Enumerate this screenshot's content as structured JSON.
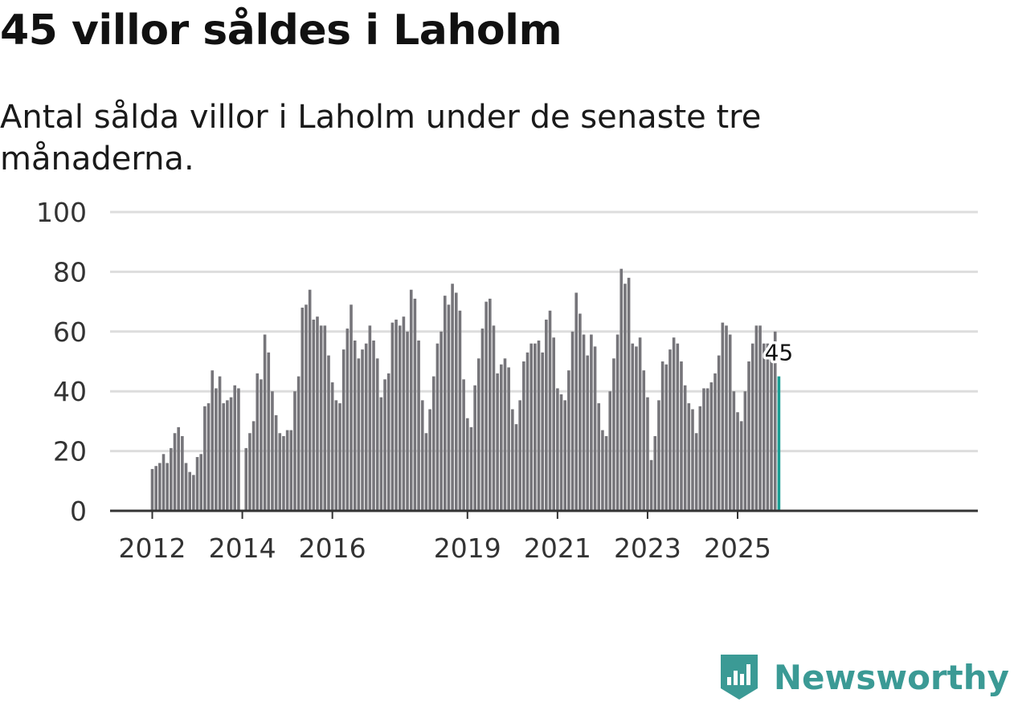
{
  "title": "45 villor såldes i Laholm",
  "subtitle": "Antal sålda villor i Laholm under de senaste tre månaderna.",
  "brand": {
    "name": "Newsworthy",
    "color": "#3b9a95",
    "icon": "newsworthy-logo-icon"
  },
  "colors": {
    "bar": "#76757a",
    "highlight": "#1a9e94",
    "grid": "#dddddd",
    "axis": "#333333"
  },
  "chart_data": {
    "type": "bar",
    "title": "45 villor såldes i Laholm",
    "xlabel": "",
    "ylabel": "",
    "ylim": [
      0,
      100
    ],
    "yticks": [
      0,
      20,
      40,
      60,
      80,
      100
    ],
    "x_start": {
      "year": 2012,
      "month": 1
    },
    "xticks": [
      "2012",
      "2014",
      "2016",
      "2019",
      "2021",
      "2023",
      "2025"
    ],
    "grid": true,
    "highlight_label": "45",
    "values": [
      14,
      15,
      16,
      19,
      16,
      21,
      26,
      28,
      25,
      16,
      13,
      12,
      18,
      19,
      35,
      36,
      47,
      41,
      45,
      36,
      37,
      38,
      42,
      41,
      0,
      21,
      26,
      30,
      46,
      44,
      59,
      53,
      40,
      32,
      26,
      25,
      27,
      27,
      40,
      45,
      68,
      69,
      74,
      64,
      65,
      62,
      62,
      52,
      43,
      37,
      36,
      54,
      61,
      69,
      57,
      51,
      54,
      56,
      62,
      57,
      51,
      38,
      44,
      46,
      63,
      64,
      62,
      65,
      60,
      74,
      71,
      57,
      37,
      26,
      34,
      45,
      56,
      60,
      72,
      69,
      76,
      73,
      67,
      44,
      31,
      28,
      42,
      51,
      61,
      70,
      71,
      62,
      46,
      49,
      51,
      48,
      34,
      29,
      37,
      50,
      53,
      56,
      56,
      57,
      53,
      64,
      67,
      58,
      41,
      39,
      37,
      47,
      60,
      73,
      66,
      59,
      52,
      59,
      55,
      36,
      27,
      25,
      40,
      51,
      59,
      81,
      76,
      78,
      56,
      55,
      58,
      47,
      38,
      17,
      25,
      37,
      50,
      49,
      54,
      58,
      56,
      50,
      42,
      36,
      34,
      26,
      35,
      41,
      41,
      43,
      46,
      52,
      63,
      62,
      59,
      40,
      33,
      30,
      40,
      50,
      56,
      62,
      62,
      56,
      56,
      52,
      60,
      45
    ]
  }
}
